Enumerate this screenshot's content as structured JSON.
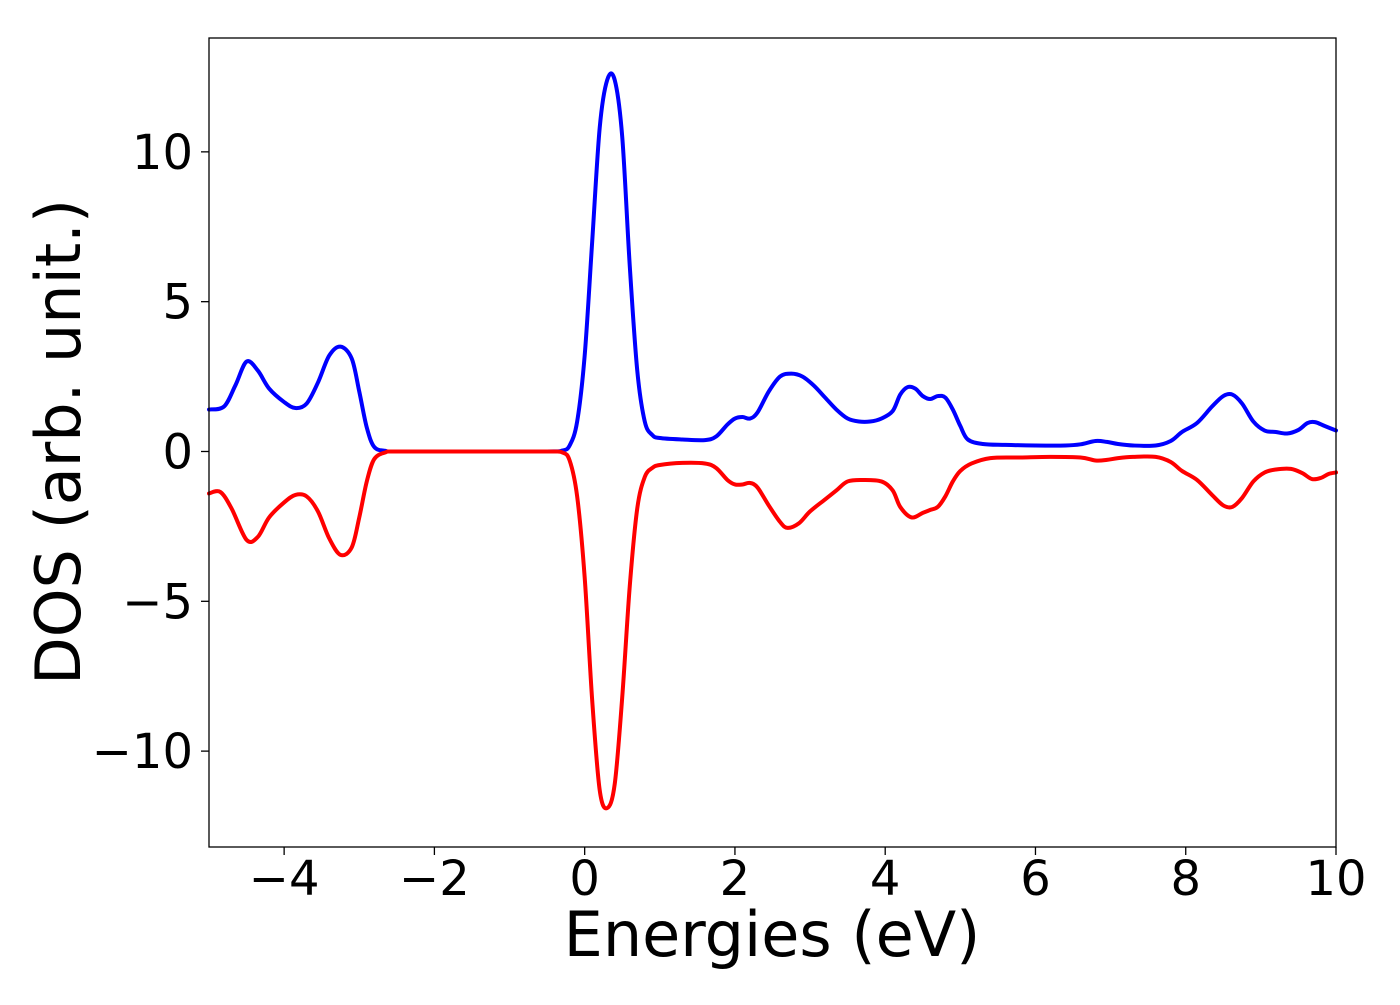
{
  "chart_data": {
    "type": "line",
    "title": "",
    "xlabel": "Energies (eV)",
    "ylabel": "DOS (arb. unit.)",
    "xlim": [
      -5,
      10
    ],
    "ylim": [
      -13.2,
      13.8
    ],
    "grid": false,
    "legend": "none",
    "x_ticks": [
      -4,
      -2,
      0,
      2,
      4,
      6,
      8,
      10
    ],
    "x_tick_labels": [
      "−4",
      "−2",
      "0",
      "2",
      "4",
      "6",
      "8",
      "10"
    ],
    "y_ticks": [
      -10,
      -5,
      0,
      5,
      10
    ],
    "y_tick_labels": [
      "−10",
      "−5",
      "0",
      "5",
      "10"
    ],
    "series": [
      {
        "color": "#0000ff",
        "points": [
          [
            -5.0,
            1.4
          ],
          [
            -4.8,
            1.5
          ],
          [
            -4.65,
            2.2
          ],
          [
            -4.5,
            3.0
          ],
          [
            -4.35,
            2.7
          ],
          [
            -4.2,
            2.1
          ],
          [
            -4.0,
            1.65
          ],
          [
            -3.85,
            1.45
          ],
          [
            -3.7,
            1.6
          ],
          [
            -3.55,
            2.3
          ],
          [
            -3.4,
            3.2
          ],
          [
            -3.25,
            3.5
          ],
          [
            -3.1,
            3.1
          ],
          [
            -3.0,
            2.0
          ],
          [
            -2.9,
            0.8
          ],
          [
            -2.8,
            0.15
          ],
          [
            -2.65,
            0.02
          ],
          [
            -2.5,
            0.0
          ],
          [
            -1.5,
            0.0
          ],
          [
            -0.5,
            0.0
          ],
          [
            -0.3,
            0.03
          ],
          [
            -0.2,
            0.2
          ],
          [
            -0.1,
            1.0
          ],
          [
            0.0,
            3.2
          ],
          [
            0.1,
            7.0
          ],
          [
            0.2,
            10.8
          ],
          [
            0.3,
            12.4
          ],
          [
            0.4,
            12.4
          ],
          [
            0.5,
            10.5
          ],
          [
            0.6,
            6.2
          ],
          [
            0.7,
            2.7
          ],
          [
            0.8,
            1.0
          ],
          [
            0.9,
            0.55
          ],
          [
            1.0,
            0.45
          ],
          [
            1.3,
            0.4
          ],
          [
            1.6,
            0.38
          ],
          [
            1.75,
            0.5
          ],
          [
            1.9,
            0.9
          ],
          [
            2.0,
            1.1
          ],
          [
            2.1,
            1.15
          ],
          [
            2.2,
            1.1
          ],
          [
            2.3,
            1.3
          ],
          [
            2.45,
            2.0
          ],
          [
            2.6,
            2.5
          ],
          [
            2.75,
            2.6
          ],
          [
            2.9,
            2.5
          ],
          [
            3.05,
            2.2
          ],
          [
            3.2,
            1.8
          ],
          [
            3.35,
            1.4
          ],
          [
            3.5,
            1.1
          ],
          [
            3.65,
            1.0
          ],
          [
            3.8,
            1.0
          ],
          [
            3.95,
            1.1
          ],
          [
            4.1,
            1.35
          ],
          [
            4.2,
            1.9
          ],
          [
            4.3,
            2.15
          ],
          [
            4.4,
            2.1
          ],
          [
            4.5,
            1.85
          ],
          [
            4.6,
            1.75
          ],
          [
            4.7,
            1.85
          ],
          [
            4.8,
            1.8
          ],
          [
            4.9,
            1.4
          ],
          [
            5.0,
            0.85
          ],
          [
            5.1,
            0.4
          ],
          [
            5.3,
            0.25
          ],
          [
            5.6,
            0.22
          ],
          [
            6.0,
            0.2
          ],
          [
            6.4,
            0.2
          ],
          [
            6.6,
            0.24
          ],
          [
            6.8,
            0.35
          ],
          [
            6.95,
            0.32
          ],
          [
            7.1,
            0.25
          ],
          [
            7.3,
            0.2
          ],
          [
            7.6,
            0.2
          ],
          [
            7.8,
            0.35
          ],
          [
            7.95,
            0.65
          ],
          [
            8.15,
            0.95
          ],
          [
            8.35,
            1.5
          ],
          [
            8.5,
            1.85
          ],
          [
            8.62,
            1.9
          ],
          [
            8.75,
            1.6
          ],
          [
            8.9,
            1.0
          ],
          [
            9.05,
            0.7
          ],
          [
            9.2,
            0.65
          ],
          [
            9.35,
            0.6
          ],
          [
            9.5,
            0.72
          ],
          [
            9.62,
            0.95
          ],
          [
            9.72,
            0.98
          ],
          [
            9.85,
            0.85
          ],
          [
            10.0,
            0.7
          ]
        ]
      },
      {
        "color": "#ff0000",
        "points": [
          [
            -5.0,
            -1.4
          ],
          [
            -4.85,
            -1.35
          ],
          [
            -4.7,
            -1.9
          ],
          [
            -4.5,
            -2.95
          ],
          [
            -4.35,
            -2.85
          ],
          [
            -4.2,
            -2.2
          ],
          [
            -4.0,
            -1.7
          ],
          [
            -3.85,
            -1.45
          ],
          [
            -3.7,
            -1.5
          ],
          [
            -3.55,
            -2.0
          ],
          [
            -3.4,
            -2.9
          ],
          [
            -3.25,
            -3.45
          ],
          [
            -3.1,
            -3.2
          ],
          [
            -3.0,
            -2.2
          ],
          [
            -2.9,
            -1.0
          ],
          [
            -2.8,
            -0.25
          ],
          [
            -2.65,
            -0.03
          ],
          [
            -2.5,
            0.0
          ],
          [
            -1.5,
            0.0
          ],
          [
            -0.5,
            0.0
          ],
          [
            -0.3,
            -0.03
          ],
          [
            -0.2,
            -0.3
          ],
          [
            -0.1,
            -1.5
          ],
          [
            0.0,
            -4.2
          ],
          [
            0.1,
            -8.3
          ],
          [
            0.2,
            -11.3
          ],
          [
            0.3,
            -11.9
          ],
          [
            0.4,
            -11.1
          ],
          [
            0.5,
            -8.2
          ],
          [
            0.6,
            -4.5
          ],
          [
            0.7,
            -1.9
          ],
          [
            0.8,
            -0.85
          ],
          [
            0.9,
            -0.55
          ],
          [
            1.0,
            -0.45
          ],
          [
            1.3,
            -0.38
          ],
          [
            1.6,
            -0.4
          ],
          [
            1.75,
            -0.55
          ],
          [
            1.9,
            -0.95
          ],
          [
            2.0,
            -1.1
          ],
          [
            2.1,
            -1.1
          ],
          [
            2.2,
            -1.05
          ],
          [
            2.3,
            -1.2
          ],
          [
            2.45,
            -1.8
          ],
          [
            2.6,
            -2.35
          ],
          [
            2.7,
            -2.55
          ],
          [
            2.85,
            -2.4
          ],
          [
            3.0,
            -2.0
          ],
          [
            3.2,
            -1.6
          ],
          [
            3.35,
            -1.3
          ],
          [
            3.5,
            -1.0
          ],
          [
            3.7,
            -0.95
          ],
          [
            3.95,
            -1.0
          ],
          [
            4.1,
            -1.3
          ],
          [
            4.2,
            -1.85
          ],
          [
            4.35,
            -2.2
          ],
          [
            4.5,
            -2.05
          ],
          [
            4.6,
            -1.95
          ],
          [
            4.7,
            -1.85
          ],
          [
            4.8,
            -1.5
          ],
          [
            4.9,
            -1.0
          ],
          [
            5.0,
            -0.65
          ],
          [
            5.15,
            -0.4
          ],
          [
            5.4,
            -0.22
          ],
          [
            5.8,
            -0.2
          ],
          [
            6.2,
            -0.18
          ],
          [
            6.6,
            -0.2
          ],
          [
            6.8,
            -0.3
          ],
          [
            6.95,
            -0.28
          ],
          [
            7.1,
            -0.22
          ],
          [
            7.3,
            -0.18
          ],
          [
            7.6,
            -0.18
          ],
          [
            7.8,
            -0.35
          ],
          [
            7.95,
            -0.65
          ],
          [
            8.15,
            -0.95
          ],
          [
            8.35,
            -1.45
          ],
          [
            8.5,
            -1.8
          ],
          [
            8.62,
            -1.85
          ],
          [
            8.75,
            -1.55
          ],
          [
            8.9,
            -1.0
          ],
          [
            9.05,
            -0.7
          ],
          [
            9.2,
            -0.6
          ],
          [
            9.4,
            -0.58
          ],
          [
            9.55,
            -0.72
          ],
          [
            9.68,
            -0.92
          ],
          [
            9.8,
            -0.88
          ],
          [
            9.9,
            -0.75
          ],
          [
            10.0,
            -0.7
          ]
        ]
      }
    ]
  }
}
